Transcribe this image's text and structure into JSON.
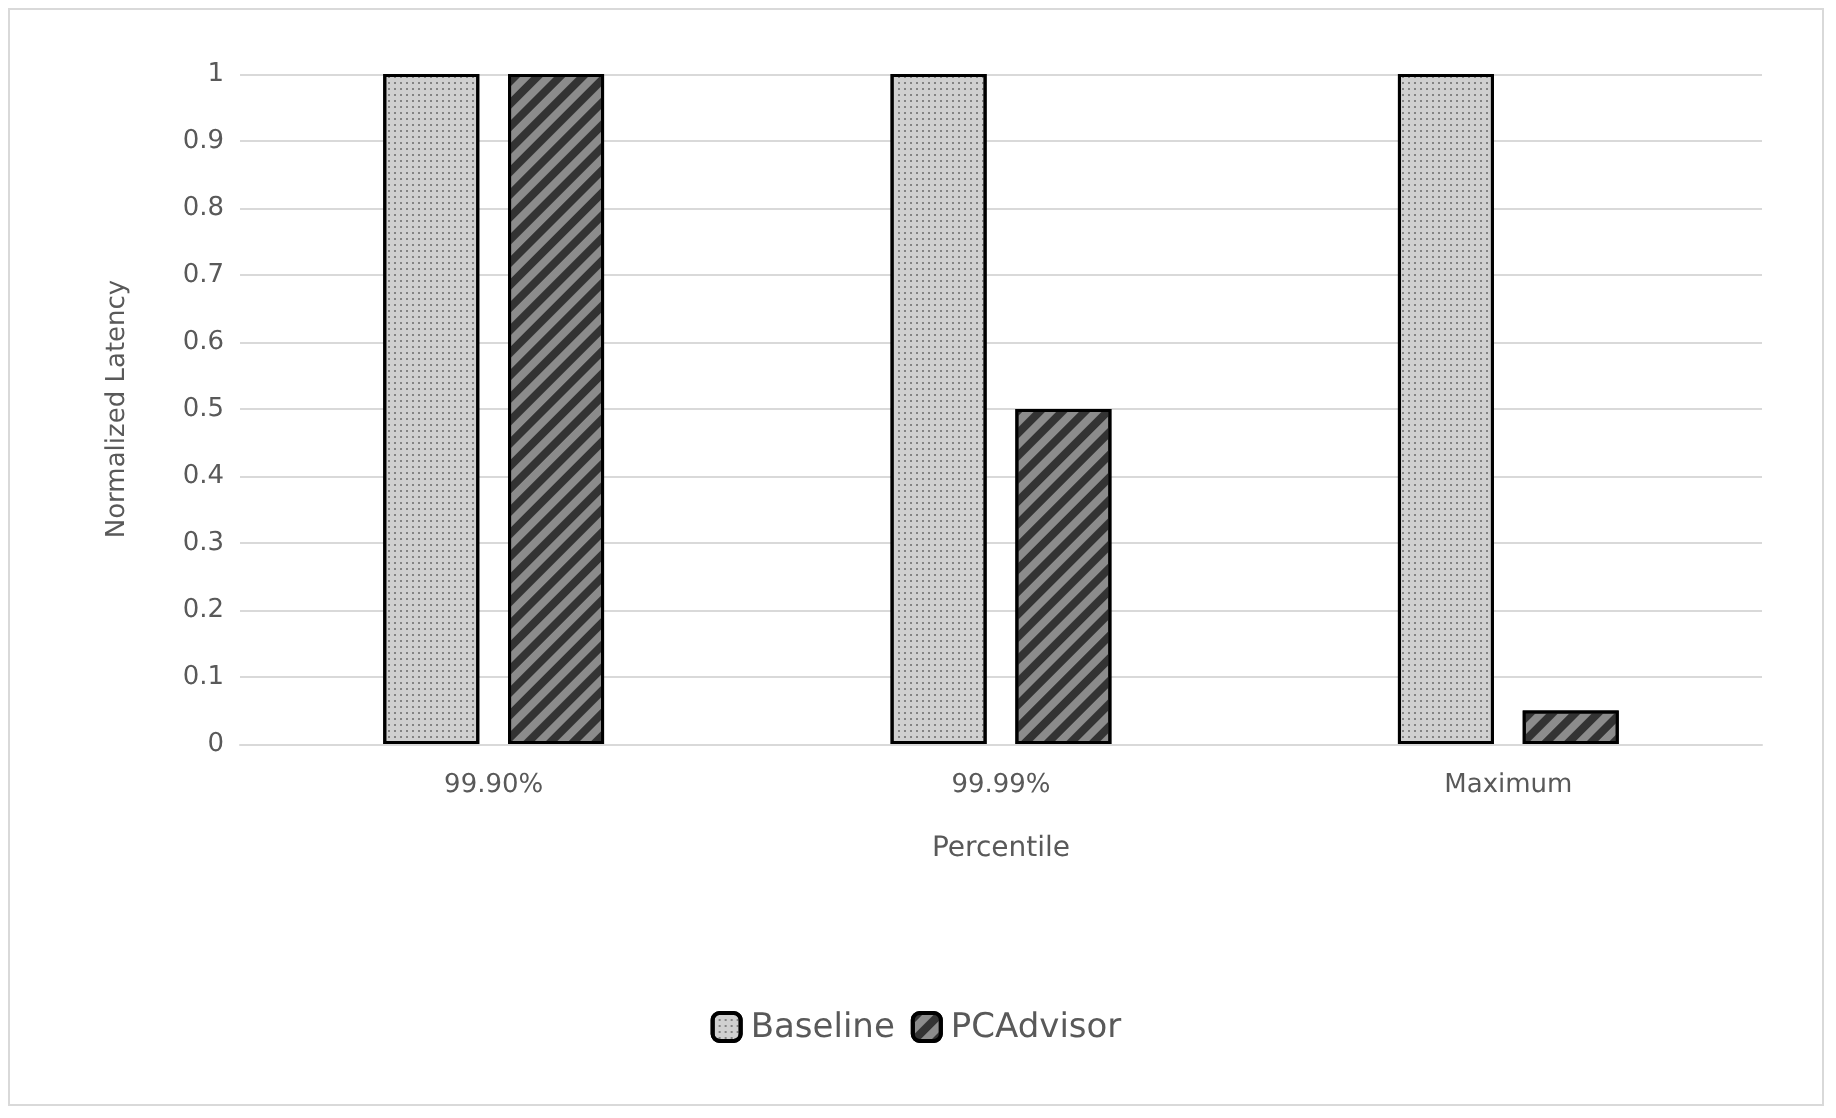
{
  "chart_data": {
    "type": "bar",
    "xlabel": "Percentile",
    "ylabel": "Normalized Latency",
    "categories": [
      "99.90%",
      "99.99%",
      "Maximum"
    ],
    "series": [
      {
        "name": "Baseline",
        "color": "#d0d0d0",
        "values": [
          1,
          1,
          1
        ]
      },
      {
        "name": "PCAdvisor",
        "color": "#8c8c8c",
        "values": [
          1,
          0.5,
          0.05
        ]
      }
    ],
    "ylim": [
      0,
      1
    ],
    "yticks": [
      0,
      0.1,
      0.2,
      0.3,
      0.4,
      0.5,
      0.6,
      0.7,
      0.8,
      0.9,
      1
    ],
    "grid": "y",
    "legend": "bottom"
  }
}
